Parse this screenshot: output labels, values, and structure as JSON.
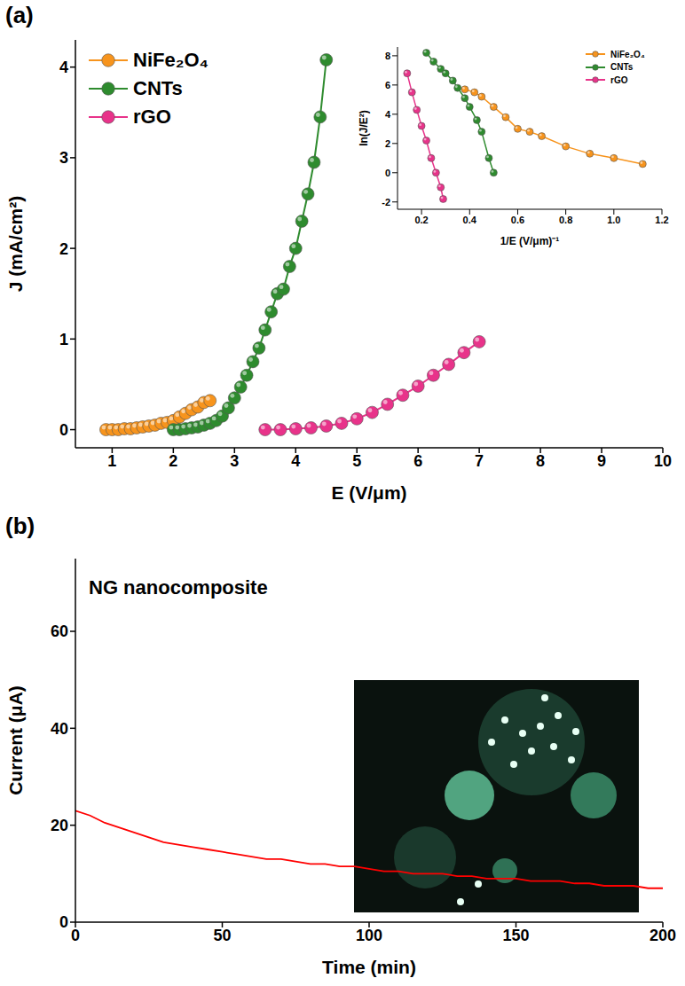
{
  "chart_data": [
    {
      "type": "line",
      "panel_label": "(a)",
      "x_label": "E (V/μm)",
      "y_label": "J (mA/cm²)",
      "marker": "circle",
      "legend": "upper left",
      "xlim": [
        0.4,
        10
      ],
      "xticks": [
        1,
        2,
        3,
        4,
        5,
        6,
        7,
        8,
        9,
        10
      ],
      "ylim": [
        -0.2,
        4.3
      ],
      "yticks": [
        0,
        1,
        2,
        3,
        4
      ],
      "series": [
        {
          "name": "NiFe₂O₄",
          "color": "#f7941d",
          "x": [
            0.9,
            1.0,
            1.1,
            1.2,
            1.3,
            1.4,
            1.5,
            1.6,
            1.7,
            1.8,
            1.9,
            2.0,
            2.1,
            2.2,
            2.3,
            2.4,
            2.5,
            2.6
          ],
          "values": [
            0.0,
            0.0,
            0.0,
            0.01,
            0.01,
            0.02,
            0.03,
            0.04,
            0.05,
            0.07,
            0.08,
            0.1,
            0.14,
            0.18,
            0.22,
            0.25,
            0.3,
            0.32
          ]
        },
        {
          "name": "CNTs",
          "color": "#2e8b2e",
          "x": [
            2.0,
            2.1,
            2.2,
            2.3,
            2.4,
            2.5,
            2.6,
            2.7,
            2.8,
            2.9,
            3.0,
            3.1,
            3.2,
            3.3,
            3.4,
            3.5,
            3.6,
            3.7,
            3.8,
            3.9,
            4.0,
            4.1,
            4.2,
            4.3,
            4.4,
            4.5
          ],
          "values": [
            0.0,
            0.0,
            0.01,
            0.02,
            0.03,
            0.05,
            0.07,
            0.1,
            0.15,
            0.24,
            0.35,
            0.47,
            0.6,
            0.75,
            0.9,
            1.1,
            1.3,
            1.5,
            1.55,
            1.8,
            2.0,
            2.3,
            2.6,
            2.95,
            3.45,
            4.08
          ]
        },
        {
          "name": "rGO",
          "color": "#e8338a",
          "x": [
            3.5,
            3.75,
            4.0,
            4.25,
            4.5,
            4.75,
            5.0,
            5.25,
            5.5,
            5.75,
            6.0,
            6.25,
            6.5,
            6.75,
            7.0
          ],
          "values": [
            0.0,
            0.0,
            0.01,
            0.02,
            0.04,
            0.07,
            0.12,
            0.19,
            0.28,
            0.38,
            0.48,
            0.6,
            0.72,
            0.85,
            0.97
          ]
        }
      ]
    },
    {
      "type": "line",
      "x_label": "1/E (V/μm)⁻¹",
      "y_label": "ln(J/E²)",
      "marker": "circle",
      "legend": "upper right",
      "xlim": [
        0.1,
        1.2
      ],
      "xticks": [
        0.2,
        0.4,
        0.6,
        0.8,
        {
          "value": 1,
          "label": "1.0"
        },
        1.2
      ],
      "ylim": [
        -2.5,
        8.6
      ],
      "yticks": [
        -2,
        0,
        2,
        4,
        6,
        8
      ],
      "series": [
        {
          "name": "NiFe₂O₄",
          "color": "#f7941d",
          "x": [
            0.38,
            0.42,
            0.45,
            0.5,
            0.55,
            0.6,
            0.65,
            0.7,
            0.8,
            0.9,
            1.0,
            1.12
          ],
          "values": [
            5.7,
            5.5,
            5.2,
            4.5,
            3.8,
            3.0,
            2.8,
            2.5,
            1.8,
            1.3,
            1.0,
            0.6
          ]
        },
        {
          "name": "CNTs",
          "color": "#2e8b2e",
          "x": [
            0.22,
            0.25,
            0.28,
            0.3,
            0.33,
            0.35,
            0.38,
            0.4,
            0.43,
            0.45,
            0.48,
            0.5
          ],
          "values": [
            8.2,
            7.6,
            7.1,
            6.8,
            6.3,
            5.8,
            5.1,
            4.5,
            3.6,
            2.8,
            1.0,
            0.0
          ]
        },
        {
          "name": "rGO",
          "color": "#e8338a",
          "x": [
            0.14,
            0.16,
            0.18,
            0.2,
            0.22,
            0.24,
            0.26,
            0.28,
            0.29
          ],
          "values": [
            6.8,
            5.5,
            4.3,
            3.2,
            2.2,
            1.0,
            0.0,
            -1.0,
            -1.8
          ]
        }
      ]
    },
    {
      "type": "line",
      "panel_label": "(b)",
      "annotation": "NG nanocomposite",
      "x_label": "Time (min)",
      "y_label": "Current (μA)",
      "marker": "none",
      "xlim": [
        0,
        200
      ],
      "xticks": [
        0,
        50,
        100,
        150,
        200
      ],
      "ylim": [
        0,
        75
      ],
      "yticks": [
        0,
        20,
        40,
        60
      ],
      "series": [
        {
          "color": "#ff0000",
          "x": [
            0,
            5,
            10,
            15,
            20,
            25,
            30,
            35,
            40,
            45,
            50,
            55,
            60,
            65,
            70,
            75,
            80,
            85,
            90,
            95,
            100,
            105,
            110,
            115,
            120,
            125,
            130,
            135,
            140,
            145,
            150,
            155,
            160,
            165,
            170,
            175,
            180,
            185,
            190,
            195,
            200
          ],
          "values": [
            23,
            22,
            20.5,
            19.5,
            18.5,
            17.5,
            16.5,
            16,
            15.5,
            15,
            14.5,
            14,
            13.5,
            13,
            13,
            12.5,
            12,
            12,
            11.5,
            11.5,
            11,
            10.5,
            10.5,
            10,
            10,
            10,
            9.5,
            9.5,
            9,
            9,
            9,
            8.5,
            8.5,
            8.5,
            8,
            8,
            7.5,
            7.5,
            7.5,
            7,
            7
          ]
        }
      ]
    }
  ]
}
